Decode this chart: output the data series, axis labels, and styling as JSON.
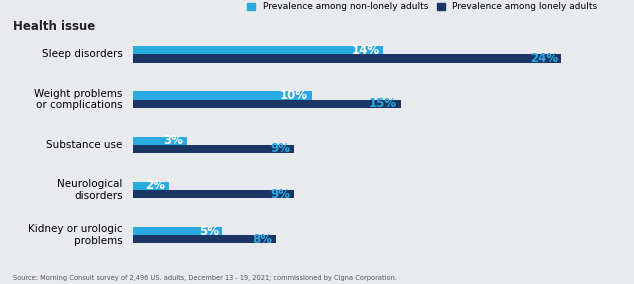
{
  "categories": [
    "Sleep disorders",
    "Weight problems\nor complications",
    "Substance use",
    "Neurological\ndisorders",
    "Kidney or urologic\nproblems"
  ],
  "non_lonely": [
    14,
    10,
    3,
    2,
    5
  ],
  "lonely": [
    24,
    15,
    9,
    9,
    8
  ],
  "color_non_lonely": "#29ABE2",
  "color_lonely": "#1B3564",
  "background_color": "#E8EAED",
  "title": "Health issue",
  "legend_non_lonely": "Prevalence among non-lonely adults",
  "legend_lonely": "Prevalence among lonely adults",
  "source": "Source: Morning Consult survey of 2,496 US. adults, December 13 - 19, 2021; commissioned by Cigna Corporation.",
  "sub_bar_height": 0.18,
  "pct_fontsize": 8.5,
  "category_fontsize": 7.5
}
